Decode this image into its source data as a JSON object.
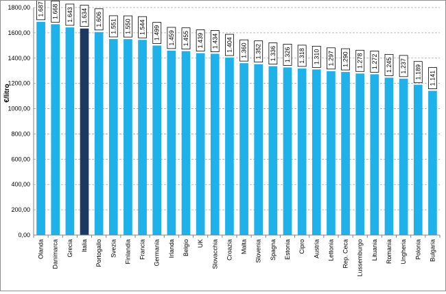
{
  "chart_data": {
    "type": "bar",
    "title": "",
    "xlabel": "",
    "ylabel": "€/litro",
    "ylim": [
      0,
      1800
    ],
    "ytick_step": 200,
    "grid": true,
    "legend": "none",
    "categories": [
      "Olanda",
      "Danimarca",
      "Grecia",
      "Italia",
      "Portogallo",
      "Svezia",
      "Finlandia",
      "Francia",
      "Germania",
      "Irlanda",
      "Belgio",
      "UK",
      "Slovacchia",
      "Croazia",
      "Malta",
      "Slovenia",
      "Spagna",
      "Estonia",
      "Cipro",
      "Austria",
      "Lettonia",
      "Rep. Ceca",
      "Lussemburgo",
      "Lituania",
      "Romania",
      "Ungheria",
      "Polonia",
      "Bulgaria"
    ],
    "values": [
      1687,
      1668,
      1643,
      1634,
      1606,
      1551,
      1550,
      1544,
      1499,
      1459,
      1455,
      1439,
      1434,
      1404,
      1360,
      1352,
      1336,
      1326,
      1318,
      1310,
      1297,
      1290,
      1278,
      1272,
      1245,
      1237,
      1189,
      1141
    ],
    "data_labels": [
      "1.687",
      "1.668",
      "1.643",
      "1.634",
      "1.606",
      "1.551",
      "1.550",
      "1.544",
      "1.499",
      "1.459",
      "1.455",
      "1.439",
      "1.434",
      "1.404",
      "1.360",
      "1.352",
      "1.336",
      "1.326",
      "1.318",
      "1.310",
      "1.297",
      "1.290",
      "1.278",
      "1.272",
      "1.245",
      "1.237",
      "1.189",
      "1.141"
    ],
    "ytick_labels": [
      "0,00",
      "200,00",
      "400,00",
      "600,00",
      "800,00",
      "1000,00",
      "1200,00",
      "1400,00",
      "1600,00",
      "1800,00"
    ],
    "colors": {
      "bar": "#1FB1EA",
      "highlight": "#1B3A63",
      "grid": "#a6a6a6",
      "axis": "#808080"
    },
    "highlight_category": "Italia"
  }
}
